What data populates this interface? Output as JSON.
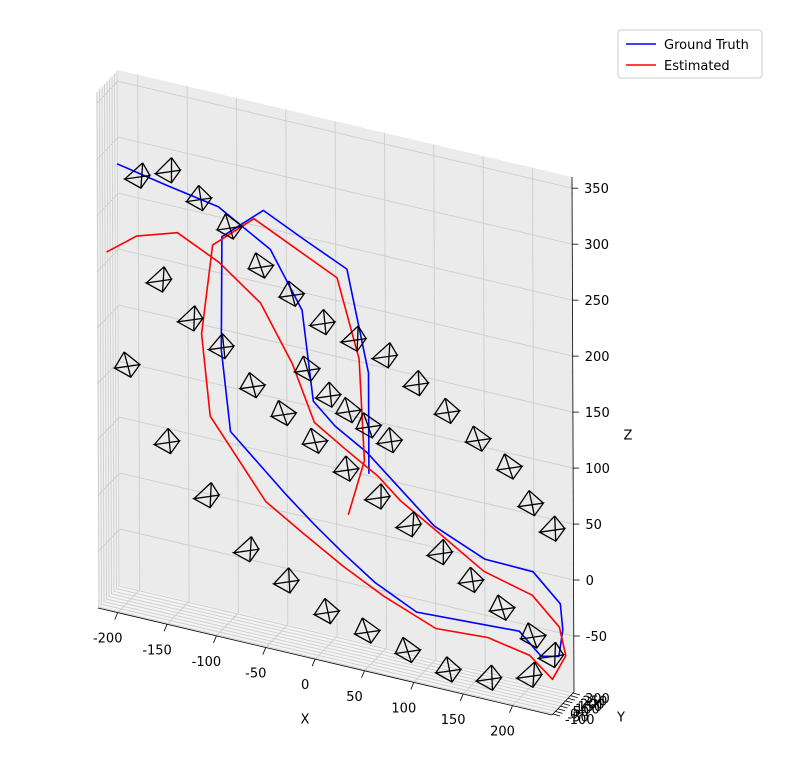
{
  "chart_data": {
    "type": "line3d",
    "axes": {
      "x": {
        "label": "X",
        "ticks": [
          -200,
          -150,
          -100,
          -50,
          0,
          50,
          100,
          150,
          200
        ],
        "range": [
          -220,
          240
        ]
      },
      "y": {
        "label": "Y",
        "ticks": [
          -100,
          -50,
          0,
          50,
          100,
          150,
          200,
          250,
          300
        ],
        "range": [
          -120,
          320
        ]
      },
      "z": {
        "label": "Z",
        "ticks": [
          -50,
          0,
          50,
          100,
          150,
          200,
          250,
          300,
          350
        ],
        "range": [
          -100,
          360
        ]
      }
    },
    "grid": true,
    "legend": {
      "placement": "top-right",
      "entries": [
        {
          "label": "Ground Truth",
          "color": "#0000ff"
        },
        {
          "label": "Estimated",
          "color": "#ff0000"
        }
      ]
    },
    "series": [
      {
        "name": "Ground Truth",
        "color": "#0000ff",
        "points": [
          [
            -200,
            -100,
            300
          ],
          [
            -150,
            -80,
            290
          ],
          [
            -100,
            -50,
            280
          ],
          [
            -50,
            0,
            250
          ],
          [
            -20,
            40,
            200
          ],
          [
            -10,
            60,
            120
          ],
          [
            10,
            100,
            100
          ],
          [
            40,
            150,
            80
          ],
          [
            60,
            200,
            60
          ],
          [
            80,
            250,
            40
          ],
          [
            100,
            300,
            20
          ],
          [
            150,
            320,
            0
          ],
          [
            200,
            300,
            0
          ],
          [
            230,
            250,
            -20
          ],
          [
            235,
            200,
            -40
          ],
          [
            235,
            120,
            -60
          ],
          [
            220,
            60,
            -60
          ],
          [
            200,
            20,
            -40
          ],
          [
            150,
            -20,
            -40
          ],
          [
            100,
            -60,
            -40
          ],
          [
            60,
            -100,
            -20
          ],
          [
            30,
            -120,
            0
          ],
          [
            0,
            -120,
            20
          ],
          [
            -30,
            -100,
            40
          ],
          [
            -60,
            -60,
            60
          ],
          [
            -90,
            -20,
            80
          ],
          [
            -100,
            0,
            150
          ],
          [
            -100,
            20,
            250
          ],
          [
            -60,
            60,
            280
          ],
          [
            -20,
            100,
            260
          ],
          [
            20,
            150,
            240
          ],
          [
            40,
            180,
            150
          ],
          [
            40,
            180,
            60
          ]
        ]
      },
      {
        "name": "Estimated",
        "color": "#ff0000",
        "points": [
          [
            -210,
            -120,
            220
          ],
          [
            -180,
            -110,
            240
          ],
          [
            -140,
            -80,
            250
          ],
          [
            -100,
            -40,
            230
          ],
          [
            -60,
            0,
            200
          ],
          [
            -30,
            40,
            150
          ],
          [
            -10,
            80,
            100
          ],
          [
            20,
            120,
            80
          ],
          [
            50,
            170,
            60
          ],
          [
            70,
            220,
            40
          ],
          [
            100,
            270,
            20
          ],
          [
            150,
            300,
            -10
          ],
          [
            200,
            280,
            -20
          ],
          [
            230,
            230,
            -40
          ],
          [
            240,
            160,
            -60
          ],
          [
            230,
            90,
            -80
          ],
          [
            210,
            30,
            -60
          ],
          [
            170,
            -20,
            -50
          ],
          [
            120,
            -70,
            -50
          ],
          [
            70,
            -110,
            -30
          ],
          [
            30,
            -140,
            -10
          ],
          [
            -10,
            -130,
            10
          ],
          [
            -50,
            -110,
            30
          ],
          [
            -80,
            -70,
            60
          ],
          [
            -110,
            -30,
            90
          ],
          [
            -120,
            0,
            160
          ],
          [
            -110,
            30,
            240
          ],
          [
            -70,
            70,
            270
          ],
          [
            -30,
            110,
            250
          ],
          [
            10,
            150,
            230
          ],
          [
            30,
            190,
            160
          ],
          [
            35,
            190,
            70
          ],
          [
            20,
            160,
            20
          ]
        ]
      }
    ],
    "camera_markers": [
      [
        -180,
        -90,
        290
      ],
      [
        -150,
        -70,
        300
      ],
      [
        -120,
        -40,
        280
      ],
      [
        -90,
        -20,
        260
      ],
      [
        -60,
        10,
        230
      ],
      [
        -30,
        30,
        210
      ],
      [
        0,
        50,
        190
      ],
      [
        30,
        80,
        180
      ],
      [
        60,
        110,
        170
      ],
      [
        90,
        140,
        150
      ],
      [
        120,
        170,
        130
      ],
      [
        150,
        200,
        110
      ],
      [
        180,
        230,
        90
      ],
      [
        200,
        260,
        60
      ],
      [
        220,
        290,
        40
      ],
      [
        -160,
        -60,
        200
      ],
      [
        -130,
        -30,
        170
      ],
      [
        -100,
        0,
        150
      ],
      [
        -70,
        30,
        120
      ],
      [
        -40,
        60,
        100
      ],
      [
        -10,
        90,
        80
      ],
      [
        20,
        120,
        60
      ],
      [
        50,
        150,
        40
      ],
      [
        80,
        180,
        20
      ],
      [
        110,
        210,
        0
      ],
      [
        140,
        240,
        -20
      ],
      [
        170,
        270,
        -40
      ],
      [
        200,
        300,
        -60
      ],
      [
        -190,
        -110,
        120
      ],
      [
        -150,
        -110,
        60
      ],
      [
        -110,
        -110,
        20
      ],
      [
        -70,
        -110,
        -20
      ],
      [
        -30,
        -100,
        -40
      ],
      [
        10,
        -80,
        -60
      ],
      [
        50,
        -60,
        -70
      ],
      [
        90,
        -40,
        -80
      ],
      [
        130,
        -20,
        -90
      ],
      [
        170,
        0,
        -90
      ],
      [
        210,
        20,
        -80
      ],
      [
        230,
        60,
        -60
      ],
      [
        0,
        160,
        120
      ],
      [
        20,
        170,
        110
      ],
      [
        40,
        180,
        100
      ],
      [
        -20,
        140,
        140
      ],
      [
        60,
        200,
        90
      ]
    ]
  }
}
